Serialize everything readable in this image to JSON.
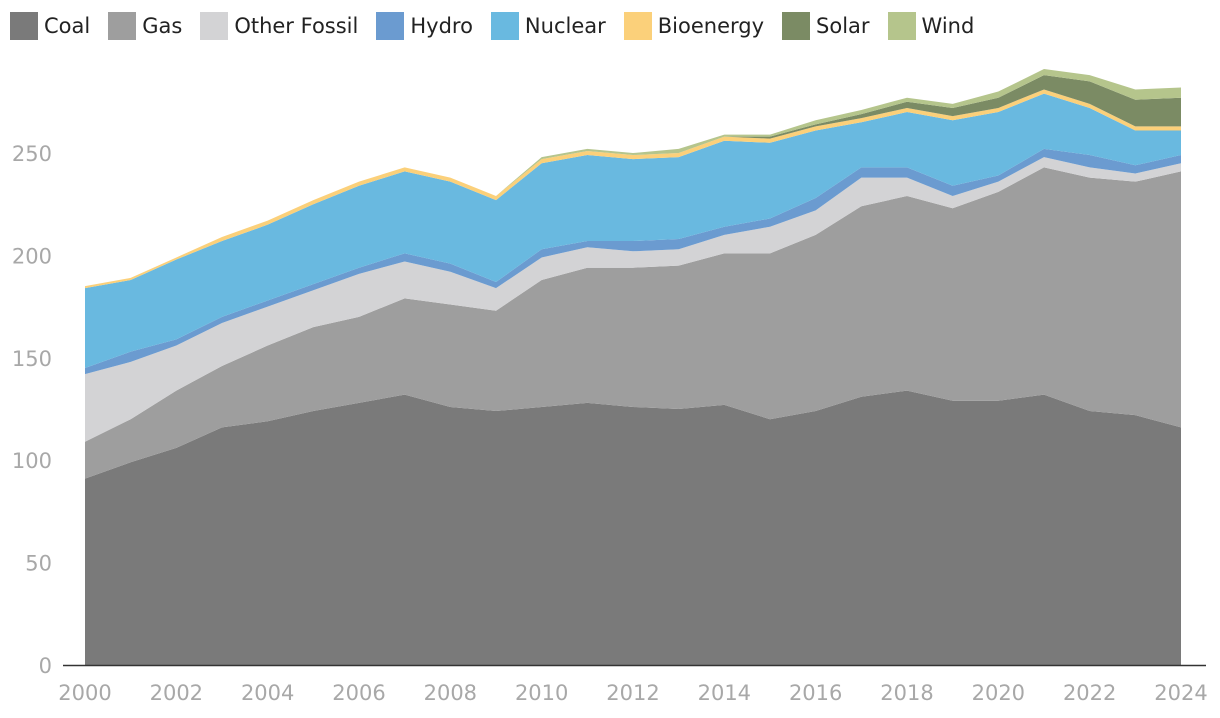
{
  "chart_data": {
    "type": "area",
    "stacked": true,
    "title": "",
    "xlabel": "",
    "ylabel": "",
    "x": [
      2000,
      2001,
      2002,
      2003,
      2004,
      2005,
      2006,
      2007,
      2008,
      2009,
      2010,
      2011,
      2012,
      2013,
      2014,
      2015,
      2016,
      2017,
      2018,
      2019,
      2020,
      2021,
      2022,
      2023,
      2024
    ],
    "xticks": [
      2000,
      2002,
      2004,
      2006,
      2008,
      2010,
      2012,
      2014,
      2016,
      2018,
      2020,
      2022,
      2024
    ],
    "yticks": [
      0,
      50,
      100,
      150,
      200,
      250
    ],
    "ylim": [
      0,
      300
    ],
    "grid": false,
    "legend_position": "top-left",
    "series": [
      {
        "name": "Coal",
        "color": "#7a7a7a",
        "values": [
          91,
          99,
          106,
          116,
          119,
          124,
          128,
          132,
          126,
          124,
          126,
          128,
          126,
          125,
          127,
          120,
          124,
          131,
          134,
          129,
          129,
          132,
          124,
          122,
          116
        ]
      },
      {
        "name": "Gas",
        "color": "#9e9e9e",
        "values": [
          18,
          21,
          28,
          30,
          37,
          41,
          42,
          47,
          50,
          49,
          62,
          66,
          68,
          70,
          74,
          81,
          86,
          93,
          95,
          94,
          102,
          111,
          114,
          114,
          125
        ]
      },
      {
        "name": "Other Fossil",
        "color": "#d3d3d5",
        "values": [
          33,
          28,
          22,
          21,
          19,
          18,
          21,
          18,
          16,
          11,
          11,
          10,
          8,
          8,
          9,
          13,
          12,
          14,
          9,
          6,
          5,
          5,
          5,
          4,
          4
        ]
      },
      {
        "name": "Hydro",
        "color": "#6b9bd0",
        "values": [
          3,
          5,
          3,
          3,
          3,
          3,
          3,
          4,
          4,
          3,
          4,
          3,
          5,
          5,
          4,
          4,
          6,
          5,
          5,
          5,
          3,
          4,
          6,
          4,
          4
        ]
      },
      {
        "name": "Nuclear",
        "color": "#69b9e0",
        "values": [
          39,
          35,
          39,
          37,
          37,
          39,
          40,
          40,
          40,
          40,
          42,
          42,
          40,
          40,
          42,
          37,
          33,
          22,
          27,
          32,
          31,
          27,
          23,
          17,
          12
        ]
      },
      {
        "name": "Bioenergy",
        "color": "#fbd07a",
        "values": [
          1,
          1,
          1,
          2,
          2,
          2,
          2,
          2,
          2,
          2,
          2,
          2,
          2,
          2,
          2,
          2,
          2,
          2,
          2,
          2,
          2,
          2,
          2,
          2,
          2
        ]
      },
      {
        "name": "Solar",
        "color": "#7b8b64",
        "values": [
          0,
          0,
          0,
          0,
          0,
          0,
          0,
          0,
          0,
          0,
          0,
          0,
          0,
          0,
          0,
          1,
          1,
          2,
          3,
          4,
          5,
          7,
          11,
          13,
          14
        ]
      },
      {
        "name": "Wind",
        "color": "#b5c58c",
        "values": [
          0,
          0,
          0,
          0,
          0,
          0,
          0,
          0,
          0,
          0,
          1,
          1,
          1,
          2,
          1,
          1,
          2,
          2,
          2,
          2,
          3,
          3,
          3,
          5,
          5
        ]
      }
    ]
  }
}
